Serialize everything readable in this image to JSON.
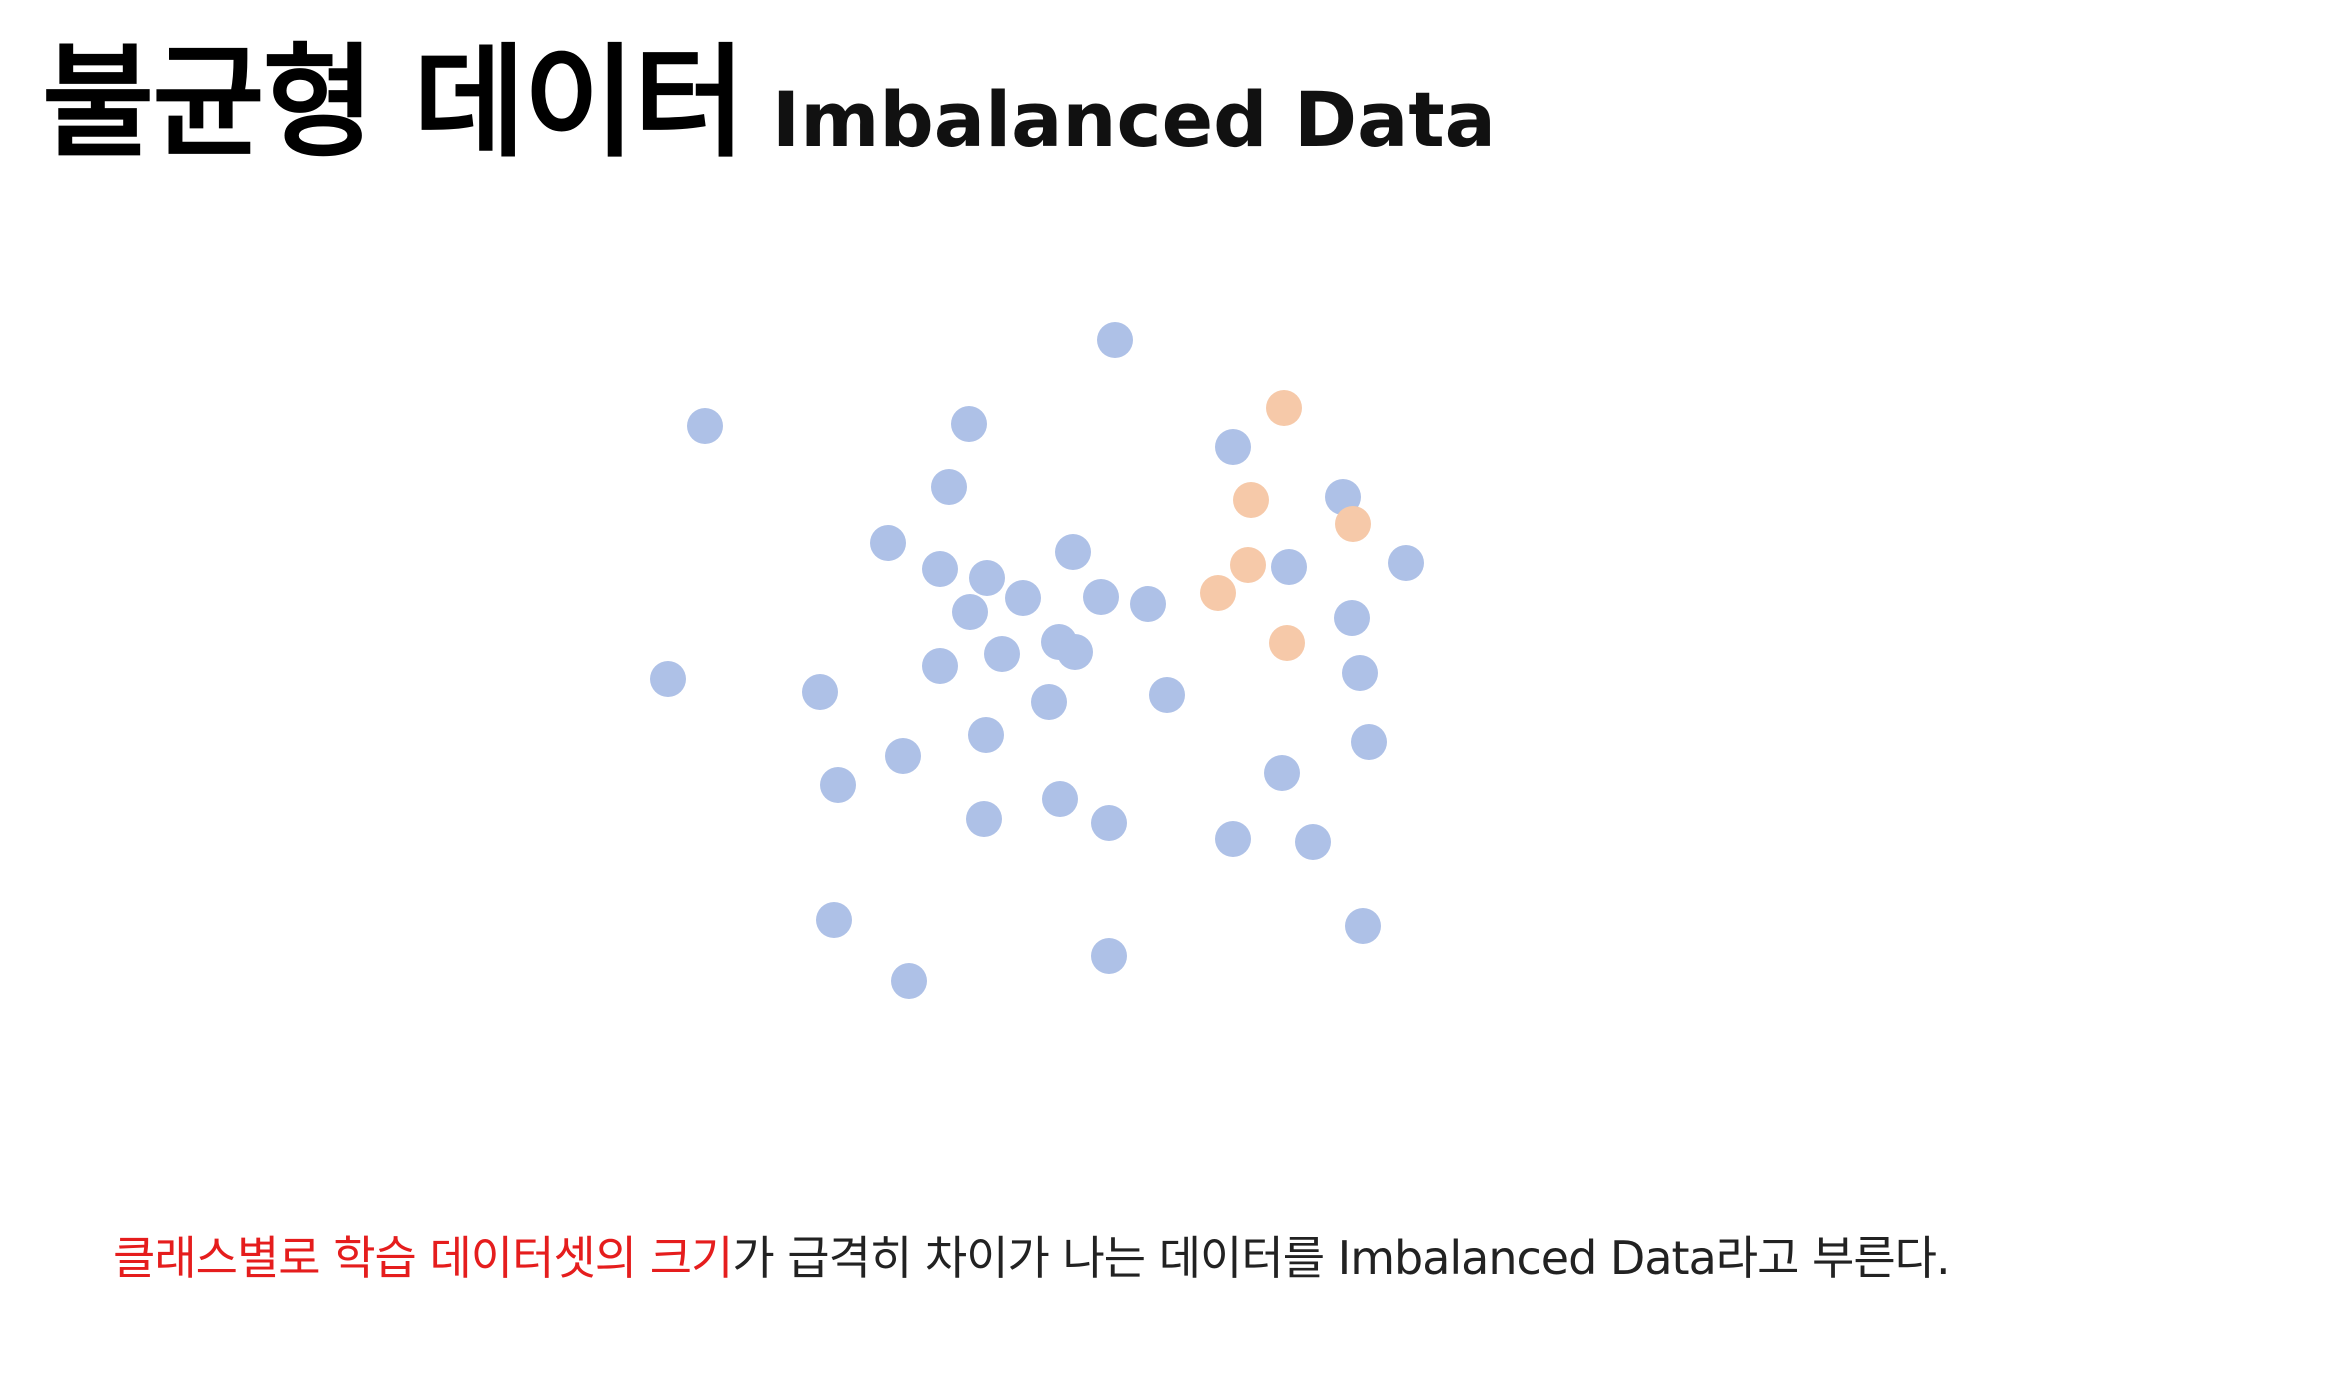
{
  "title": {
    "korean": "불균형 데이터",
    "english": "Imbalanced Data"
  },
  "caption": {
    "highlight": "클래스별로 학습 데이터셋의 크기",
    "rest": "가 급격히 차이가 나는 데이터를 Imbalanced Data라고 부른다.",
    "highlight_color": "#e51d1d"
  },
  "colors": {
    "majority": "#aec1e7",
    "minority": "#f6c9a9"
  },
  "chart_data": {
    "type": "scatter",
    "series": [
      {
        "class": "majority",
        "color": "#aec1e7",
        "points": [
          [
            1115,
            340
          ],
          [
            705,
            426
          ],
          [
            969,
            424
          ],
          [
            1233,
            447
          ],
          [
            949,
            487
          ],
          [
            1343,
            497
          ],
          [
            888,
            543
          ],
          [
            940,
            569
          ],
          [
            1073,
            552
          ],
          [
            987,
            578
          ],
          [
            1023,
            598
          ],
          [
            970,
            612
          ],
          [
            1101,
            597
          ],
          [
            1148,
            604
          ],
          [
            1406,
            563
          ],
          [
            1289,
            567
          ],
          [
            1352,
            618
          ],
          [
            1002,
            654
          ],
          [
            940,
            666
          ],
          [
            1059,
            642
          ],
          [
            1075,
            652
          ],
          [
            1360,
            673
          ],
          [
            668,
            679
          ],
          [
            820,
            692
          ],
          [
            1049,
            702
          ],
          [
            1167,
            695
          ],
          [
            986,
            735
          ],
          [
            903,
            756
          ],
          [
            1369,
            742
          ],
          [
            838,
            785
          ],
          [
            1282,
            773
          ],
          [
            984,
            819
          ],
          [
            1060,
            799
          ],
          [
            1109,
            823
          ],
          [
            1233,
            839
          ],
          [
            1313,
            842
          ],
          [
            834,
            920
          ],
          [
            1363,
            926
          ],
          [
            1109,
            956
          ],
          [
            909,
            981
          ]
        ]
      },
      {
        "class": "minority",
        "color": "#f6c9a9",
        "points": [
          [
            1284,
            408
          ],
          [
            1251,
            500
          ],
          [
            1353,
            524
          ],
          [
            1248,
            565
          ],
          [
            1218,
            593
          ],
          [
            1287,
            643
          ]
        ]
      }
    ]
  }
}
